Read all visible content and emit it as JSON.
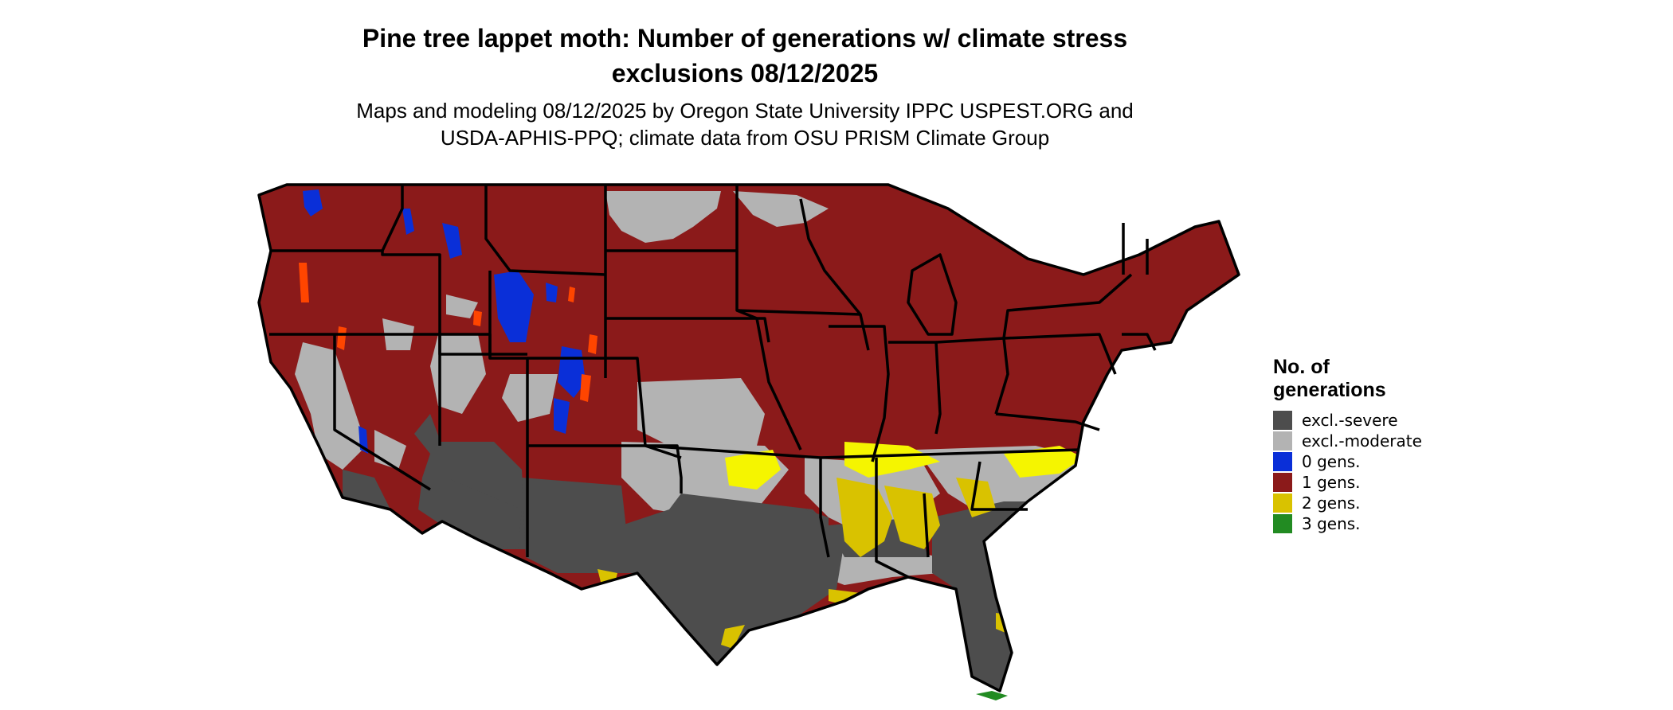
{
  "title_line1": "Pine tree lappet moth: Number of generations w/ climate stress",
  "title_line2": "exclusions 08/12/2025",
  "subtitle_line1": "Maps and modeling 08/12/2025 by Oregon State University IPPC USPEST.ORG and",
  "subtitle_line2": "USDA-APHIS-PPQ; climate data from OSU PRISM Climate Group",
  "legend": {
    "title": "No. of generations",
    "items": [
      {
        "label": "excl.-severe",
        "color": "#4d4d4d"
      },
      {
        "label": "excl.-moderate",
        "color": "#b3b3b3"
      },
      {
        "label": "0 gens.",
        "color": "#0a2fd8"
      },
      {
        "label": "1 gens.",
        "color": "#8b1a1a"
      },
      {
        "label": "2 gens.",
        "color": "#d9c200"
      },
      {
        "label": "3 gens.",
        "color": "#228b22"
      }
    ]
  },
  "colors": {
    "excl_severe": "#4d4d4d",
    "excl_moderate": "#b3b3b3",
    "gen0": "#0a2fd8",
    "gen1": "#8b1a1a",
    "gen1_accent": "#ff4500",
    "gen2": "#d9c200",
    "gen2_bright": "#f5f500",
    "gen3": "#228b22",
    "borders": "#000000"
  }
}
